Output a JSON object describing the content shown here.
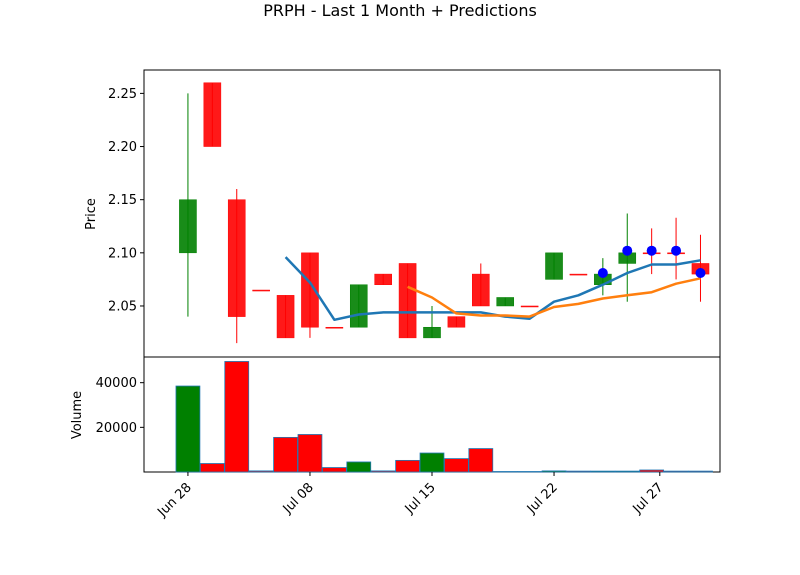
{
  "title": "PRPH - Last 1 Month + Predictions",
  "chart_data": [
    {
      "type": "candlestick",
      "ylabel": "Price",
      "ylim": [
        2.002,
        2.272
      ],
      "yticks": [
        2.05,
        2.1,
        2.15,
        2.2,
        2.25
      ],
      "xlim": [
        -1.8,
        21.8
      ],
      "candles": [
        {
          "date": "2024-06-28",
          "open": 2.1,
          "high": 2.25,
          "low": 2.04,
          "close": 2.15,
          "color": "green"
        },
        {
          "date": "2024-07-01",
          "open": 2.26,
          "high": 2.26,
          "low": 2.2,
          "close": 2.2,
          "color": "red"
        },
        {
          "date": "2024-07-02",
          "open": 2.15,
          "high": 2.16,
          "low": 2.015,
          "close": 2.04,
          "color": "red"
        },
        {
          "date": "2024-07-03",
          "open": 2.065,
          "high": 2.065,
          "low": 2.065,
          "close": 2.065,
          "color": "red"
        },
        {
          "date": "2024-07-05",
          "open": 2.06,
          "high": 2.06,
          "low": 2.02,
          "close": 2.02,
          "color": "red"
        },
        {
          "date": "2024-07-08",
          "open": 2.1,
          "high": 2.1,
          "low": 2.02,
          "close": 2.03,
          "color": "red"
        },
        {
          "date": "2024-07-09",
          "open": 2.03,
          "high": 2.03,
          "low": 2.03,
          "close": 2.03,
          "color": "red"
        },
        {
          "date": "2024-07-10",
          "open": 2.03,
          "high": 2.07,
          "low": 2.03,
          "close": 2.07,
          "color": "green"
        },
        {
          "date": "2024-07-11",
          "open": 2.08,
          "high": 2.08,
          "low": 2.07,
          "close": 2.07,
          "color": "red"
        },
        {
          "date": "2024-07-12",
          "open": 2.09,
          "high": 2.09,
          "low": 2.02,
          "close": 2.02,
          "color": "red"
        },
        {
          "date": "2024-07-15",
          "open": 2.02,
          "high": 2.05,
          "low": 2.02,
          "close": 2.03,
          "color": "green"
        },
        {
          "date": "2024-07-16",
          "open": 2.04,
          "high": 2.04,
          "low": 2.03,
          "close": 2.03,
          "color": "red"
        },
        {
          "date": "2024-07-17",
          "open": 2.08,
          "high": 2.09,
          "low": 2.05,
          "close": 2.05,
          "color": "red"
        },
        {
          "date": "2024-07-18",
          "open": 2.05,
          "high": 2.058,
          "low": 2.05,
          "close": 2.058,
          "color": "green"
        },
        {
          "date": "2024-07-19",
          "open": 2.05,
          "high": 2.05,
          "low": 2.05,
          "close": 2.05,
          "color": "red"
        },
        {
          "date": "2024-07-22",
          "open": 2.075,
          "high": 2.1,
          "low": 2.075,
          "close": 2.1,
          "color": "green"
        },
        {
          "date": "2024-07-23",
          "open": 2.08,
          "high": 2.08,
          "low": 2.08,
          "close": 2.08,
          "color": "red"
        },
        {
          "date": "2024-07-24",
          "open": 2.07,
          "high": 2.095,
          "low": 2.06,
          "close": 2.08,
          "color": "green"
        },
        {
          "date": "2024-07-25",
          "open": 2.09,
          "high": 2.137,
          "low": 2.054,
          "close": 2.1,
          "color": "green"
        },
        {
          "date": "2024-07-26",
          "open": 2.1,
          "high": 2.123,
          "low": 2.08,
          "close": 2.1,
          "color": "red"
        },
        {
          "date": "2024-07-29",
          "open": 2.1,
          "high": 2.133,
          "low": 2.075,
          "close": 2.1,
          "color": "red"
        },
        {
          "date": "2024-07-30",
          "open": 2.09,
          "high": 2.117,
          "low": 2.054,
          "close": 2.08,
          "color": "red"
        }
      ],
      "ma_blue": [
        {
          "date": "2024-07-05",
          "value": 2.096
        },
        {
          "date": "2024-07-08",
          "value": 2.072
        },
        {
          "date": "2024-07-09",
          "value": 2.037
        },
        {
          "date": "2024-07-10",
          "value": 2.042
        },
        {
          "date": "2024-07-11",
          "value": 2.044
        },
        {
          "date": "2024-07-12",
          "value": 2.044
        },
        {
          "date": "2024-07-15",
          "value": 2.044
        },
        {
          "date": "2024-07-16",
          "value": 2.044
        },
        {
          "date": "2024-07-17",
          "value": 2.044
        },
        {
          "date": "2024-07-18",
          "value": 2.04
        },
        {
          "date": "2024-07-19",
          "value": 2.038
        },
        {
          "date": "2024-07-22",
          "value": 2.054
        },
        {
          "date": "2024-07-23",
          "value": 2.06
        },
        {
          "date": "2024-07-24",
          "value": 2.07
        },
        {
          "date": "2024-07-25",
          "value": 2.081
        },
        {
          "date": "2024-07-26",
          "value": 2.089
        },
        {
          "date": "2024-07-29",
          "value": 2.089
        },
        {
          "date": "2024-07-30",
          "value": 2.093
        }
      ],
      "ma_orange": [
        {
          "date": "2024-07-12",
          "value": 2.068
        },
        {
          "date": "2024-07-15",
          "value": 2.058
        },
        {
          "date": "2024-07-16",
          "value": 2.043
        },
        {
          "date": "2024-07-17",
          "value": 2.041
        },
        {
          "date": "2024-07-18",
          "value": 2.041
        },
        {
          "date": "2024-07-19",
          "value": 2.04
        },
        {
          "date": "2024-07-22",
          "value": 2.049
        },
        {
          "date": "2024-07-23",
          "value": 2.052
        },
        {
          "date": "2024-07-24",
          "value": 2.057
        },
        {
          "date": "2024-07-25",
          "value": 2.06
        },
        {
          "date": "2024-07-26",
          "value": 2.063
        },
        {
          "date": "2024-07-29",
          "value": 2.071
        },
        {
          "date": "2024-07-30",
          "value": 2.076
        }
      ],
      "prediction_points": [
        {
          "date": "2024-07-24",
          "value": 2.081
        },
        {
          "date": "2024-07-25",
          "value": 2.102
        },
        {
          "date": "2024-07-26",
          "value": 2.102
        },
        {
          "date": "2024-07-29",
          "value": 2.102
        },
        {
          "date": "2024-07-30",
          "value": 2.081
        }
      ]
    },
    {
      "type": "bar",
      "ylabel": "Volume",
      "ylim": [
        0,
        51500
      ],
      "yticks": [
        20000,
        40000
      ],
      "ytick_labels": [
        "20000",
        "40000"
      ],
      "xtick_dates": [
        "2024-06-28",
        "2024-07-08",
        "2024-07-15",
        "2024-07-22",
        "2024-07-27"
      ],
      "xticks": [
        "Jun 28",
        "Jul 08",
        "Jul 15",
        "Jul 22",
        "Jul 27"
      ],
      "bars": [
        {
          "date": "2024-06-28",
          "value": 38500,
          "color": "green"
        },
        {
          "date": "2024-07-01",
          "value": 3800,
          "color": "red"
        },
        {
          "date": "2024-07-02",
          "value": 49500,
          "color": "red"
        },
        {
          "date": "2024-07-03",
          "value": 500,
          "color": "red"
        },
        {
          "date": "2024-07-05",
          "value": 15500,
          "color": "red"
        },
        {
          "date": "2024-07-08",
          "value": 16800,
          "color": "red"
        },
        {
          "date": "2024-07-09",
          "value": 2000,
          "color": "red"
        },
        {
          "date": "2024-07-10",
          "value": 4500,
          "color": "green"
        },
        {
          "date": "2024-07-11",
          "value": 500,
          "color": "red"
        },
        {
          "date": "2024-07-12",
          "value": 5200,
          "color": "red"
        },
        {
          "date": "2024-07-15",
          "value": 8500,
          "color": "green"
        },
        {
          "date": "2024-07-16",
          "value": 6000,
          "color": "red"
        },
        {
          "date": "2024-07-17",
          "value": 10500,
          "color": "red"
        },
        {
          "date": "2024-07-18",
          "value": 0,
          "color": "green"
        },
        {
          "date": "2024-07-19",
          "value": 0,
          "color": "red"
        },
        {
          "date": "2024-07-22",
          "value": 500,
          "color": "green"
        },
        {
          "date": "2024-07-23",
          "value": 400,
          "color": "red"
        },
        {
          "date": "2024-07-24",
          "value": 400,
          "color": "green"
        },
        {
          "date": "2024-07-25",
          "value": 400,
          "color": "green"
        },
        {
          "date": "2024-07-26",
          "value": 900,
          "color": "red"
        },
        {
          "date": "2024-07-29",
          "value": 400,
          "color": "red"
        },
        {
          "date": "2024-07-30",
          "value": 400,
          "color": "red"
        }
      ]
    }
  ],
  "colors": {
    "up": "#008000",
    "down": "#ff0000",
    "ma_blue": "#1f77b4",
    "ma_orange": "#ff7f0e",
    "prediction": "#0000ff"
  }
}
